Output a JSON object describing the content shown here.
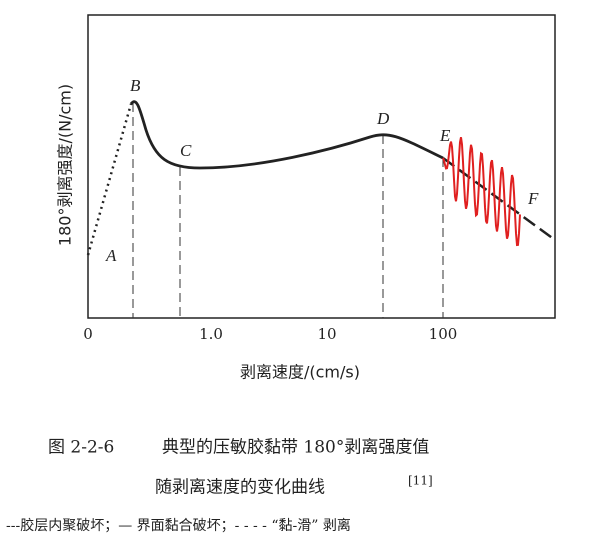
{
  "axes": {
    "y_label": "180°剥离强度/(N/cm)",
    "x_label": "剥离速度/(cm/s)",
    "x_ticks": [
      "0",
      "1.0",
      "10",
      "100"
    ]
  },
  "points": {
    "A": "A",
    "B": "B",
    "C": "C",
    "D": "D",
    "E": "E",
    "F": "F"
  },
  "caption": {
    "figure_number": "图 2-2-6",
    "line1": "典型的压敏胶黏带 180°剥离强度值",
    "line2": "随剥离速度的变化曲线",
    "reference": "[11]",
    "legend": "---胶层内聚破坏；— 界面黏合破坏；- - - - “黏-滑” 剥离"
  }
}
